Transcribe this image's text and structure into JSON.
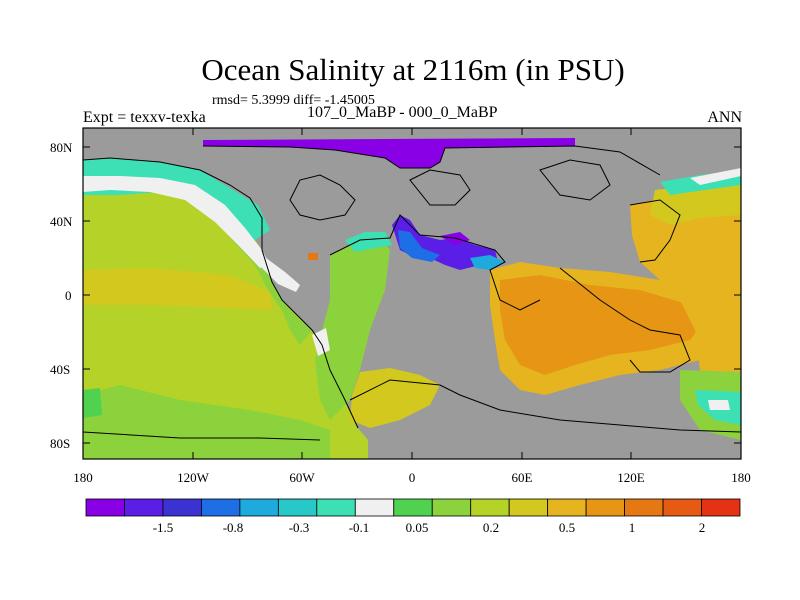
{
  "title": "Ocean Salinity at 2116m (in PSU)",
  "stats": "rmsd= 5.3999 diff= -1.45005",
  "left_label": "Expt = texxv-texka",
  "center_label": "107_0_MaBP - 000_0_MaBP",
  "right_label": "ANN",
  "lat_ticks": [
    "80N",
    "40N",
    "0",
    "40S",
    "80S"
  ],
  "lon_ticks": [
    "180",
    "120W",
    "60W",
    "0",
    "60E",
    "120E",
    "180"
  ],
  "colorbar": {
    "labels": [
      "-1.5",
      "-0.8",
      "-0.3",
      "-0.1",
      "0.05",
      "0.2",
      "0.5",
      "1",
      "2"
    ],
    "colors": [
      "#8a00e6",
      "#5a1ee6",
      "#3c32d2",
      "#1e6ee6",
      "#1eaadc",
      "#28c8c8",
      "#3ce0b4",
      "#f0f0f0",
      "#50d250",
      "#8cd23c",
      "#b4d228",
      "#d2c81e",
      "#e6b41e",
      "#e69614",
      "#e67814",
      "#e65a14",
      "#e63214"
    ]
  },
  "colors": {
    "land": "#9b9b9b",
    "coast": "#000000"
  }
}
